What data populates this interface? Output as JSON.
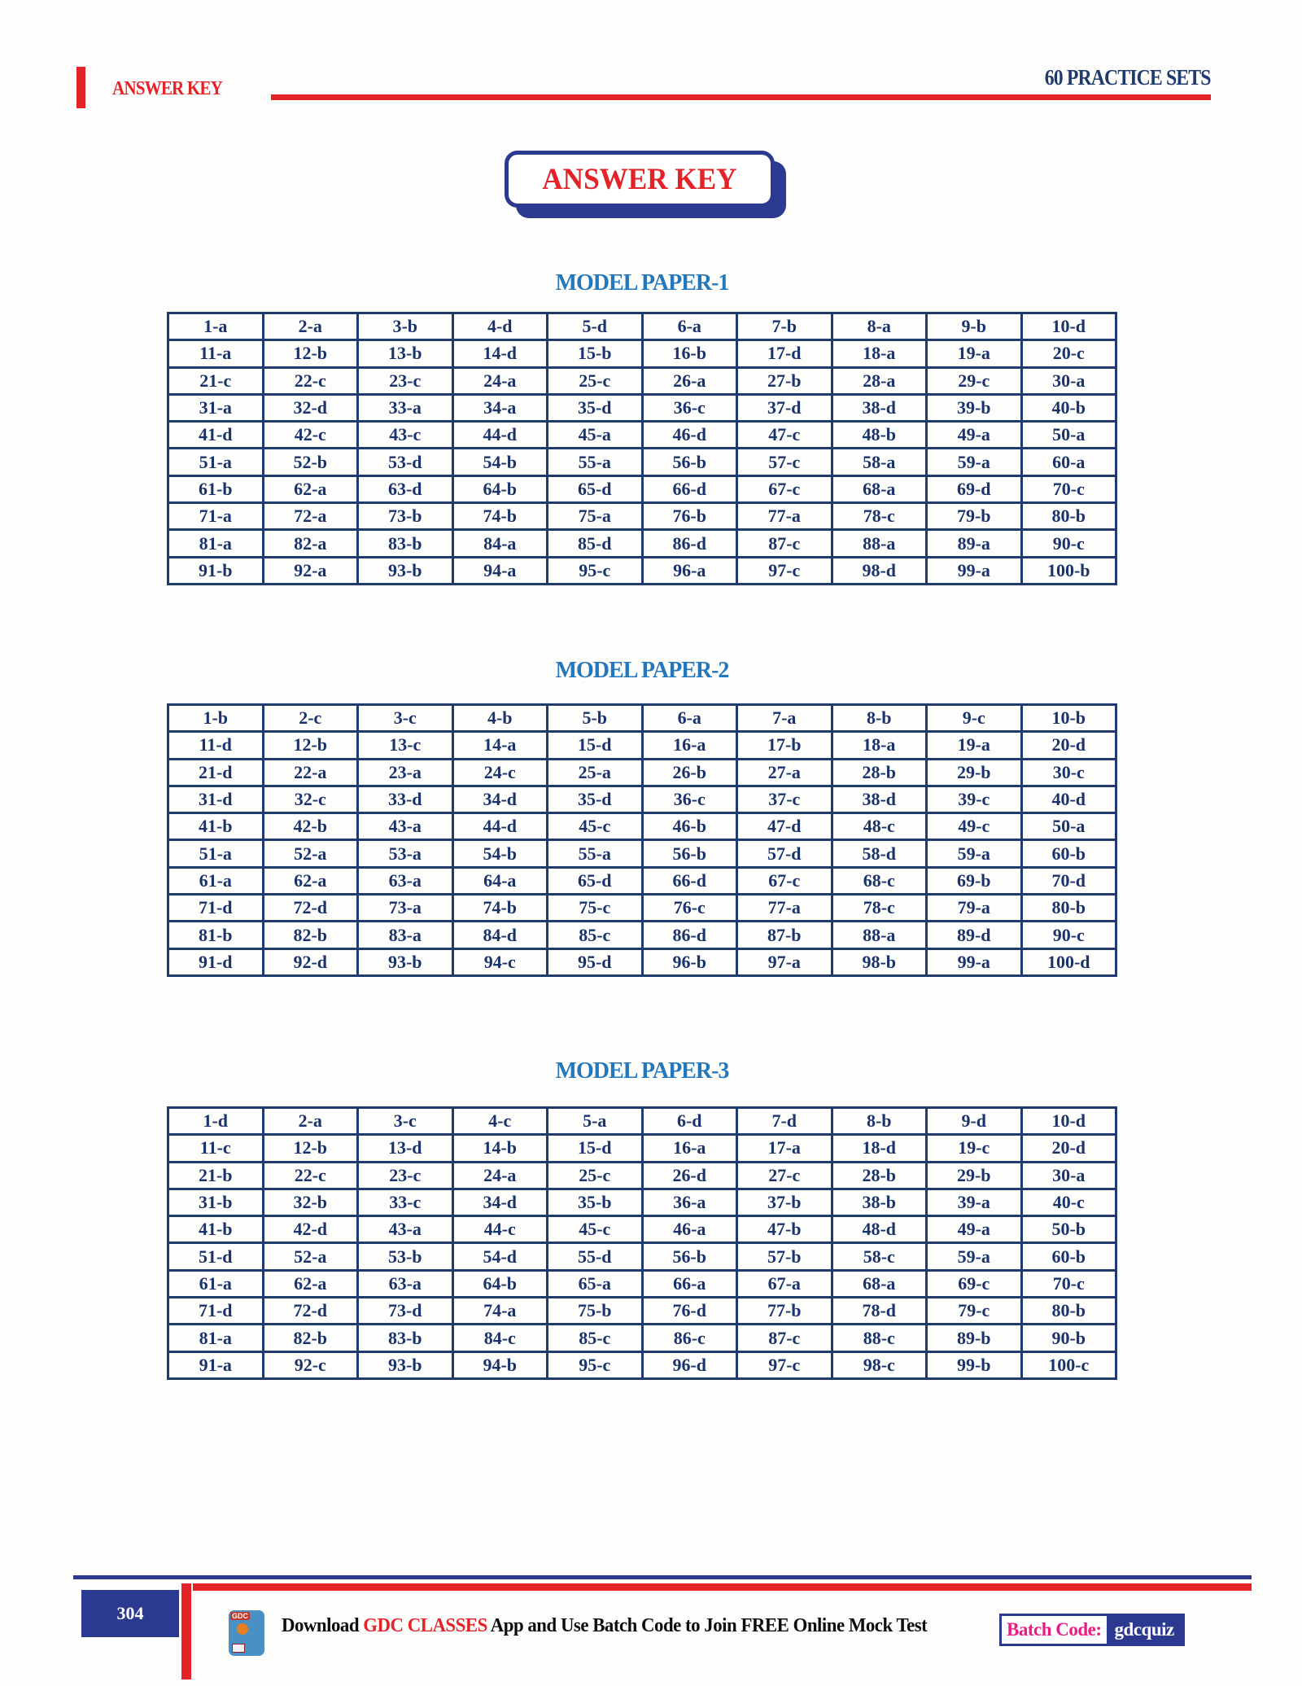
{
  "header": {
    "left_title": "ANSWER KEY",
    "right_title": "60 PRACTICE SETS"
  },
  "title_box": {
    "label": "ANSWER KEY"
  },
  "papers": [
    {
      "title": "MODEL PAPER-1",
      "rows": [
        [
          "1-a",
          "2-a",
          "3-b",
          "4-d",
          "5-d",
          "6-a",
          "7-b",
          "8-a",
          "9-b",
          "10-d"
        ],
        [
          "11-a",
          "12-b",
          "13-b",
          "14-d",
          "15-b",
          "16-b",
          "17-d",
          "18-a",
          "19-a",
          "20-c"
        ],
        [
          "21-c",
          "22-c",
          "23-c",
          "24-a",
          "25-c",
          "26-a",
          "27-b",
          "28-a",
          "29-c",
          "30-a"
        ],
        [
          "31-a",
          "32-d",
          "33-a",
          "34-a",
          "35-d",
          "36-c",
          "37-d",
          "38-d",
          "39-b",
          "40-b"
        ],
        [
          "41-d",
          "42-c",
          "43-c",
          "44-d",
          "45-a",
          "46-d",
          "47-c",
          "48-b",
          "49-a",
          "50-a"
        ],
        [
          "51-a",
          "52-b",
          "53-d",
          "54-b",
          "55-a",
          "56-b",
          "57-c",
          "58-a",
          "59-a",
          "60-a"
        ],
        [
          "61-b",
          "62-a",
          "63-d",
          "64-b",
          "65-d",
          "66-d",
          "67-c",
          "68-a",
          "69-d",
          "70-c"
        ],
        [
          "71-a",
          "72-a",
          "73-b",
          "74-b",
          "75-a",
          "76-b",
          "77-a",
          "78-c",
          "79-b",
          "80-b"
        ],
        [
          "81-a",
          "82-a",
          "83-b",
          "84-a",
          "85-d",
          "86-d",
          "87-c",
          "88-a",
          "89-a",
          "90-c"
        ],
        [
          "91-b",
          "92-a",
          "93-b",
          "94-a",
          "95-c",
          "96-a",
          "97-c",
          "98-d",
          "99-a",
          "100-b"
        ]
      ]
    },
    {
      "title": "MODEL PAPER-2",
      "rows": [
        [
          "1-b",
          "2-c",
          "3-c",
          "4-b",
          "5-b",
          "6-a",
          "7-a",
          "8-b",
          "9-c",
          "10-b"
        ],
        [
          "11-d",
          "12-b",
          "13-c",
          "14-a",
          "15-d",
          "16-a",
          "17-b",
          "18-a",
          "19-a",
          "20-d"
        ],
        [
          "21-d",
          "22-a",
          "23-a",
          "24-c",
          "25-a",
          "26-b",
          "27-a",
          "28-b",
          "29-b",
          "30-c"
        ],
        [
          "31-d",
          "32-c",
          "33-d",
          "34-d",
          "35-d",
          "36-c",
          "37-c",
          "38-d",
          "39-c",
          "40-d"
        ],
        [
          "41-b",
          "42-b",
          "43-a",
          "44-d",
          "45-c",
          "46-b",
          "47-d",
          "48-c",
          "49-c",
          "50-a"
        ],
        [
          "51-a",
          "52-a",
          "53-a",
          "54-b",
          "55-a",
          "56-b",
          "57-d",
          "58-d",
          "59-a",
          "60-b"
        ],
        [
          "61-a",
          "62-a",
          "63-a",
          "64-a",
          "65-d",
          "66-d",
          "67-c",
          "68-c",
          "69-b",
          "70-d"
        ],
        [
          "71-d",
          "72-d",
          "73-a",
          "74-b",
          "75-c",
          "76-c",
          "77-a",
          "78-c",
          "79-a",
          "80-b"
        ],
        [
          "81-b",
          "82-b",
          "83-a",
          "84-d",
          "85-c",
          "86-d",
          "87-b",
          "88-a",
          "89-d",
          "90-c"
        ],
        [
          "91-d",
          "92-d",
          "93-b",
          "94-c",
          "95-d",
          "96-b",
          "97-a",
          "98-b",
          "99-a",
          "100-d"
        ]
      ]
    },
    {
      "title": "MODEL PAPER-3",
      "rows": [
        [
          "1-d",
          "2-a",
          "3-c",
          "4-c",
          "5-a",
          "6-d",
          "7-d",
          "8-b",
          "9-d",
          "10-d"
        ],
        [
          "11-c",
          "12-b",
          "13-d",
          "14-b",
          "15-d",
          "16-a",
          "17-a",
          "18-d",
          "19-c",
          "20-d"
        ],
        [
          "21-b",
          "22-c",
          "23-c",
          "24-a",
          "25-c",
          "26-d",
          "27-c",
          "28-b",
          "29-b",
          "30-a"
        ],
        [
          "31-b",
          "32-b",
          "33-c",
          "34-d",
          "35-b",
          "36-a",
          "37-b",
          "38-b",
          "39-a",
          "40-c"
        ],
        [
          "41-b",
          "42-d",
          "43-a",
          "44-c",
          "45-c",
          "46-a",
          "47-b",
          "48-d",
          "49-a",
          "50-b"
        ],
        [
          "51-d",
          "52-a",
          "53-b",
          "54-d",
          "55-d",
          "56-b",
          "57-b",
          "58-c",
          "59-a",
          "60-b"
        ],
        [
          "61-a",
          "62-a",
          "63-a",
          "64-b",
          "65-a",
          "66-a",
          "67-a",
          "68-a",
          "69-c",
          "70-c"
        ],
        [
          "71-d",
          "72-d",
          "73-d",
          "74-a",
          "75-b",
          "76-d",
          "77-b",
          "78-d",
          "79-c",
          "80-b"
        ],
        [
          "81-a",
          "82-b",
          "83-b",
          "84-c",
          "85-c",
          "86-c",
          "87-c",
          "88-c",
          "89-b",
          "90-b"
        ],
        [
          "91-a",
          "92-c",
          "93-b",
          "94-b",
          "95-c",
          "96-d",
          "97-c",
          "98-c",
          "99-b",
          "100-c"
        ]
      ]
    }
  ],
  "footer": {
    "page_number": "304",
    "icon_label": "GDC",
    "download_prefix": "Download ",
    "brand": "GDC CLASSES",
    "download_suffix": " App and Use Batch Code to Join FREE Online Mock Test",
    "batch_code_label": "Batch Code:",
    "batch_code_value": "gdcquiz"
  },
  "colors": {
    "accent_red": "#e42328",
    "table_navy": "#203a70",
    "heading_blue": "#2377bd",
    "box_indigo": "#2b3990",
    "batch_magenta": "#ed1a86"
  }
}
